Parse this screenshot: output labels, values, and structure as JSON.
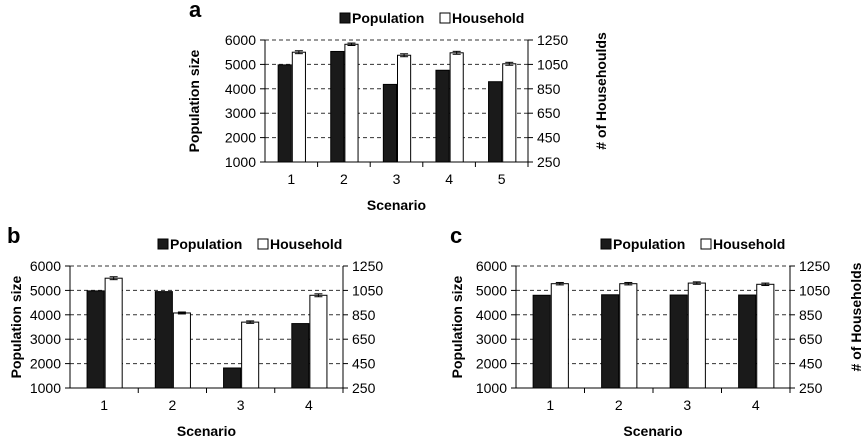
{
  "chart_data": [
    {
      "panel": "a",
      "type": "bar",
      "categories": [
        "1",
        "2",
        "3",
        "4",
        "5"
      ],
      "xlabel": "Scenario",
      "ylabel": "Population size",
      "y2label": "# of Househoulds",
      "ylim": [
        1000,
        6000
      ],
      "yticks": [
        "1000",
        "2000",
        "3000",
        "4000",
        "5000",
        "6000"
      ],
      "y2lim": [
        250,
        1250
      ],
      "y2ticks": [
        "250",
        "450",
        "650",
        "850",
        "1050",
        "1250"
      ],
      "grid": true,
      "legend_position": "top",
      "series": [
        {
          "name": "Population",
          "axis": "left",
          "color": "#1a1a1a",
          "values": [
            4980,
            5530,
            4180,
            4760,
            4290
          ]
        },
        {
          "name": "Household",
          "axis": "right",
          "color": "#ffffff",
          "values": [
            1150,
            1215,
            1125,
            1145,
            1055
          ],
          "error": [
            12,
            10,
            12,
            12,
            12
          ]
        }
      ]
    },
    {
      "panel": "b",
      "type": "bar",
      "categories": [
        "1",
        "2",
        "3",
        "4"
      ],
      "xlabel": "Scenario",
      "ylabel": "Population size",
      "y2label": "",
      "ylim": [
        1000,
        6000
      ],
      "yticks": [
        "1000",
        "2000",
        "3000",
        "4000",
        "5000",
        "6000"
      ],
      "y2lim": [
        250,
        1250
      ],
      "y2ticks": [
        "250",
        "450",
        "650",
        "850",
        "1050",
        "1250"
      ],
      "grid": true,
      "legend_position": "top",
      "series": [
        {
          "name": "Population",
          "axis": "left",
          "color": "#1a1a1a",
          "values": [
            4980,
            4950,
            1820,
            3640
          ]
        },
        {
          "name": "Household",
          "axis": "right",
          "color": "#ffffff",
          "values": [
            1150,
            865,
            790,
            1010
          ],
          "error": [
            12,
            8,
            10,
            12
          ]
        }
      ]
    },
    {
      "panel": "c",
      "type": "bar",
      "categories": [
        "1",
        "2",
        "3",
        "4"
      ],
      "xlabel": "Scenario",
      "ylabel": "Population size",
      "y2label": "# of Households",
      "ylim": [
        1000,
        6000
      ],
      "yticks": [
        "1000",
        "2000",
        "3000",
        "4000",
        "5000",
        "6000"
      ],
      "y2lim": [
        250,
        1250
      ],
      "y2ticks": [
        "250",
        "450",
        "650",
        "850",
        "1050",
        "1250"
      ],
      "grid": true,
      "legend_position": "top",
      "series": [
        {
          "name": "Population",
          "axis": "left",
          "color": "#1a1a1a",
          "values": [
            4800,
            4820,
            4810,
            4810
          ]
        },
        {
          "name": "Household",
          "axis": "right",
          "color": "#ffffff",
          "values": [
            1105,
            1105,
            1110,
            1100
          ],
          "error": [
            10,
            10,
            10,
            10
          ]
        }
      ]
    }
  ]
}
